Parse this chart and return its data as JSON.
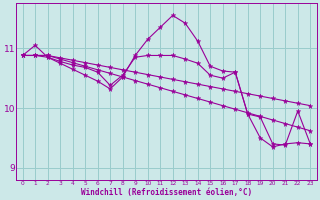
{
  "xlabel": "Windchill (Refroidissement éolien,°C)",
  "background_color": "#cce8e8",
  "grid_color": "#99cccc",
  "line_color": "#990099",
  "x": [
    0,
    1,
    2,
    3,
    4,
    5,
    6,
    7,
    8,
    9,
    10,
    11,
    12,
    13,
    14,
    15,
    16,
    17,
    18,
    19,
    20,
    21,
    22,
    23
  ],
  "series": [
    [
      10.88,
      10.88,
      10.88,
      10.82,
      10.76,
      10.7,
      10.64,
      10.58,
      10.52,
      10.46,
      10.4,
      10.34,
      10.28,
      10.22,
      10.16,
      10.1,
      10.04,
      9.98,
      9.92,
      9.86,
      9.8,
      9.74,
      9.68,
      9.62
    ],
    [
      10.88,
      10.88,
      10.88,
      10.84,
      10.8,
      10.76,
      10.72,
      10.68,
      10.64,
      10.6,
      10.56,
      10.52,
      10.48,
      10.44,
      10.4,
      10.36,
      10.32,
      10.28,
      10.24,
      10.2,
      10.16,
      10.12,
      10.08,
      10.04
    ],
    [
      10.88,
      11.05,
      10.85,
      10.78,
      10.72,
      10.68,
      10.6,
      10.38,
      10.55,
      10.85,
      10.88,
      10.88,
      10.88,
      10.82,
      10.75,
      10.55,
      10.5,
      10.6,
      9.9,
      9.5,
      9.35,
      9.4,
      9.42,
      9.4
    ],
    [
      10.88,
      10.88,
      10.85,
      10.75,
      10.65,
      10.55,
      10.45,
      10.32,
      10.52,
      10.88,
      11.15,
      11.35,
      11.55,
      11.42,
      11.12,
      10.7,
      10.62,
      10.6,
      9.9,
      9.85,
      9.4,
      9.38,
      9.95,
      9.4
    ]
  ],
  "yticks": [
    9,
    10,
    11
  ],
  "ylim": [
    8.8,
    11.75
  ],
  "xlim": [
    -0.5,
    23.5
  ]
}
